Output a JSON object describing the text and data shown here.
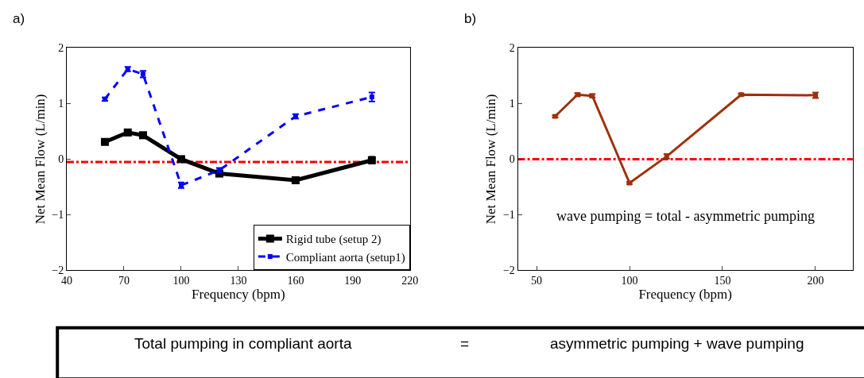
{
  "chart_data": [
    {
      "type": "line",
      "title": "a)",
      "xlabel": "Frequency (bpm)",
      "ylabel": "Net Mean Flow (L/min)",
      "xlim": [
        40,
        220
      ],
      "xticks": [
        40,
        70,
        100,
        130,
        160,
        190,
        220
      ],
      "ylim": [
        -2,
        2
      ],
      "yticks": [
        -2,
        -1,
        0,
        1,
        2
      ],
      "grid": false,
      "legend": "bottom right",
      "marker": "square",
      "x": [
        60,
        72,
        80,
        100,
        120,
        160,
        200
      ],
      "series": [
        {
          "name": "Rigid tube (setup 2)",
          "color": "#000000",
          "line_style": "solid",
          "values": [
            0.31,
            0.48,
            0.43,
            0.0,
            -0.26,
            -0.38,
            -0.02
          ],
          "errors": [
            0.03,
            0.03,
            0.03,
            0.03,
            null,
            0.03,
            0.06
          ]
        },
        {
          "name": "Compliant aorta (setup1)",
          "color": "#0000ff",
          "line_style": "dashed",
          "values": [
            1.08,
            1.62,
            1.53,
            -0.47,
            -0.2,
            0.77,
            1.12
          ],
          "errors": [
            0.03,
            0.04,
            0.06,
            0.05,
            0.04,
            0.04,
            0.08
          ]
        }
      ],
      "ref_lines": [
        {
          "axis": "y",
          "value": -0.05,
          "color": "#ff0000",
          "line_style": "dashdot"
        }
      ]
    },
    {
      "type": "line",
      "title": "b)",
      "xlabel": "Frequency (bpm)",
      "ylabel": "Net Mean Flow (L/min)",
      "xlim": [
        40,
        220
      ],
      "xticks": [
        50,
        100,
        150,
        200
      ],
      "ylim": [
        -2,
        2
      ],
      "yticks": [
        -2,
        -1,
        0,
        1,
        2
      ],
      "grid": false,
      "legend": false,
      "marker": "square",
      "x": [
        60,
        72,
        80,
        100,
        120,
        160,
        200
      ],
      "series": [
        {
          "color": "#a0300a",
          "line_style": "solid",
          "values": [
            0.77,
            1.16,
            1.14,
            -0.43,
            0.05,
            1.16,
            1.15
          ],
          "errors": [
            0.02,
            0.03,
            0.03,
            0.02,
            0.04,
            0.02,
            0.05
          ]
        }
      ],
      "ref_lines": [
        {
          "axis": "y",
          "value": 0,
          "color": "#ff0000",
          "line_style": "dashdot"
        }
      ],
      "annotations": [
        "wave pumping = total - asymmetric pumping"
      ]
    },
    {
      "type": "other",
      "annotations": [
        "Total pumping in compliant aorta",
        "=",
        "asymmetric pumping + wave pumping"
      ]
    }
  ]
}
